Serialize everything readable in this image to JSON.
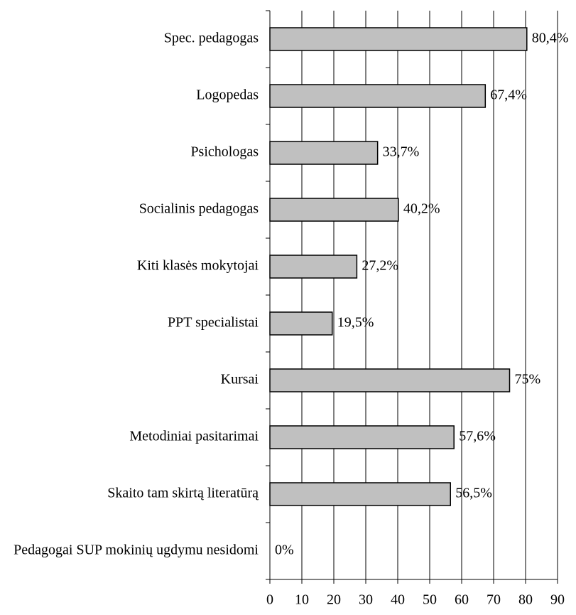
{
  "chart_data": {
    "type": "bar",
    "orientation": "horizontal",
    "categories": [
      "Spec. pedagogas",
      "Logopedas",
      "Psichologas",
      "Socialinis pedagogas",
      "Kiti klasės mokytojai",
      "PPT specialistai",
      "Kursai",
      "Metodiniai pasitarimai",
      "Skaito tam skirtą literatūrą",
      "Pedagogai SUP mokinių ugdymu nesidomi"
    ],
    "values": [
      80.4,
      67.4,
      33.7,
      40.2,
      27.2,
      19.5,
      75,
      57.6,
      56.5,
      0
    ],
    "value_labels": [
      "80,4%",
      "67,4%",
      "33,7%",
      "40,2%",
      "27,2%",
      "19,5%",
      "75%",
      "57,6%",
      "56,5%",
      "0%"
    ],
    "color": "#c0c0c0",
    "xlim": [
      0,
      90
    ],
    "xticks": [
      0,
      10,
      20,
      30,
      40,
      50,
      60,
      70,
      80,
      90
    ],
    "grid": true
  }
}
